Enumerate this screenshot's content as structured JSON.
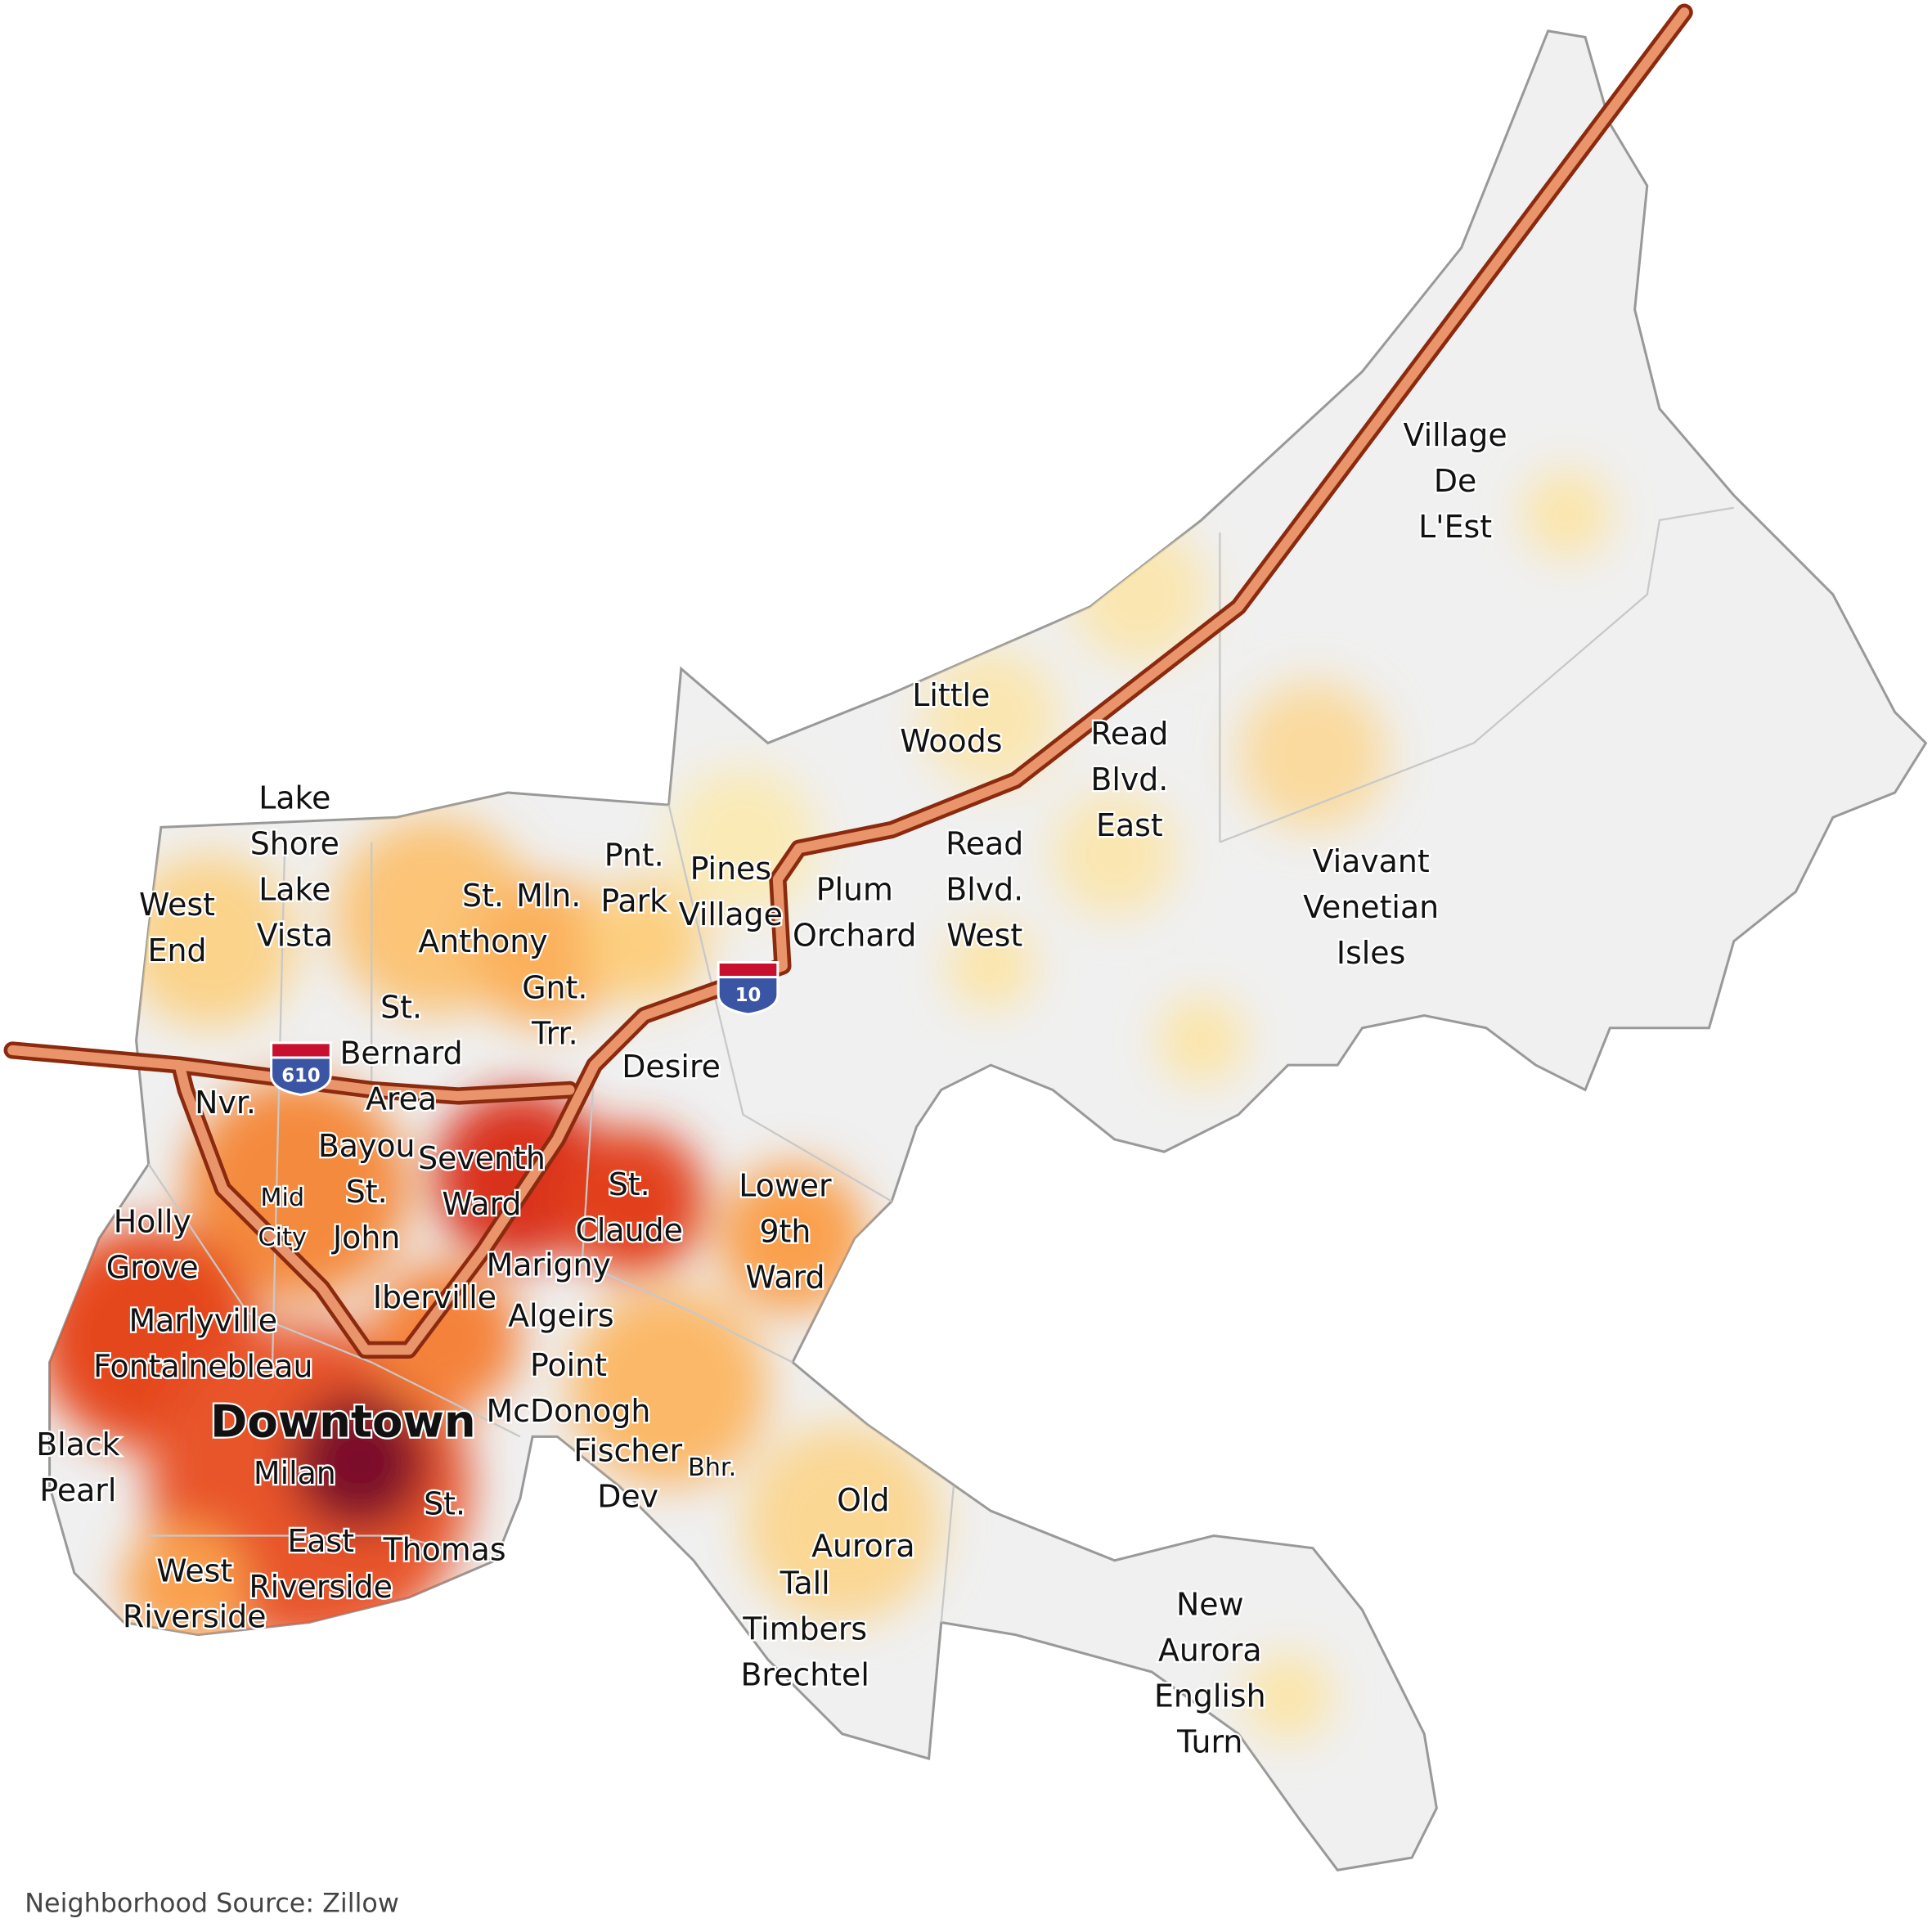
{
  "map": {
    "labels": [
      [
        "Village",
        "De",
        "L'Est"
      ],
      [
        "Little",
        "Woods"
      ],
      [
        "Read",
        "Blvd.",
        "East"
      ],
      [
        "Lake",
        "Shore",
        "Lake",
        "Vista"
      ],
      [
        "West",
        "End"
      ],
      [
        "St.",
        "Anthony"
      ],
      [
        "Mln."
      ],
      [
        "Pnt.",
        "Park"
      ],
      [
        "Pines",
        "Village"
      ],
      [
        "Plum",
        "Orchard"
      ],
      [
        "Read",
        "Blvd.",
        "West"
      ],
      [
        "Viavant",
        "Venetian",
        "Isles"
      ],
      [
        "Gnt.",
        "Trr."
      ],
      [
        "St.",
        "Bernard",
        "Area"
      ],
      [
        "Desire"
      ],
      [
        "Nvr."
      ],
      [
        "Bayou",
        "St.",
        "John"
      ],
      [
        "Seventh",
        "Ward"
      ],
      [
        "Mid",
        "City"
      ],
      [
        "St.",
        "Claude"
      ],
      [
        "Lower",
        "9th",
        "Ward"
      ],
      [
        "Holly",
        "Grove"
      ],
      [
        "Marigny"
      ],
      [
        "Iberville"
      ],
      [
        "Marlyville",
        "Fontainebleau"
      ],
      [
        "Algeirs"
      ],
      [
        "Point",
        "McDonogh"
      ],
      [
        "Downtown"
      ],
      [
        "Black",
        "Pearl"
      ],
      [
        "Milan"
      ],
      [
        "Fischer",
        "Dev"
      ],
      [
        "Bhr."
      ],
      [
        "St.",
        "Thomas"
      ],
      [
        "Old",
        "Aurora"
      ],
      [
        "East",
        "Riverside"
      ],
      [
        "West",
        "Riverside"
      ],
      [
        "Tall",
        "Timbers",
        "Brechtel"
      ],
      [
        "New",
        "Aurora",
        "English",
        "Turn"
      ]
    ],
    "highways": [
      "610",
      "10"
    ],
    "source": "Neighborhood Source: Zillow"
  }
}
